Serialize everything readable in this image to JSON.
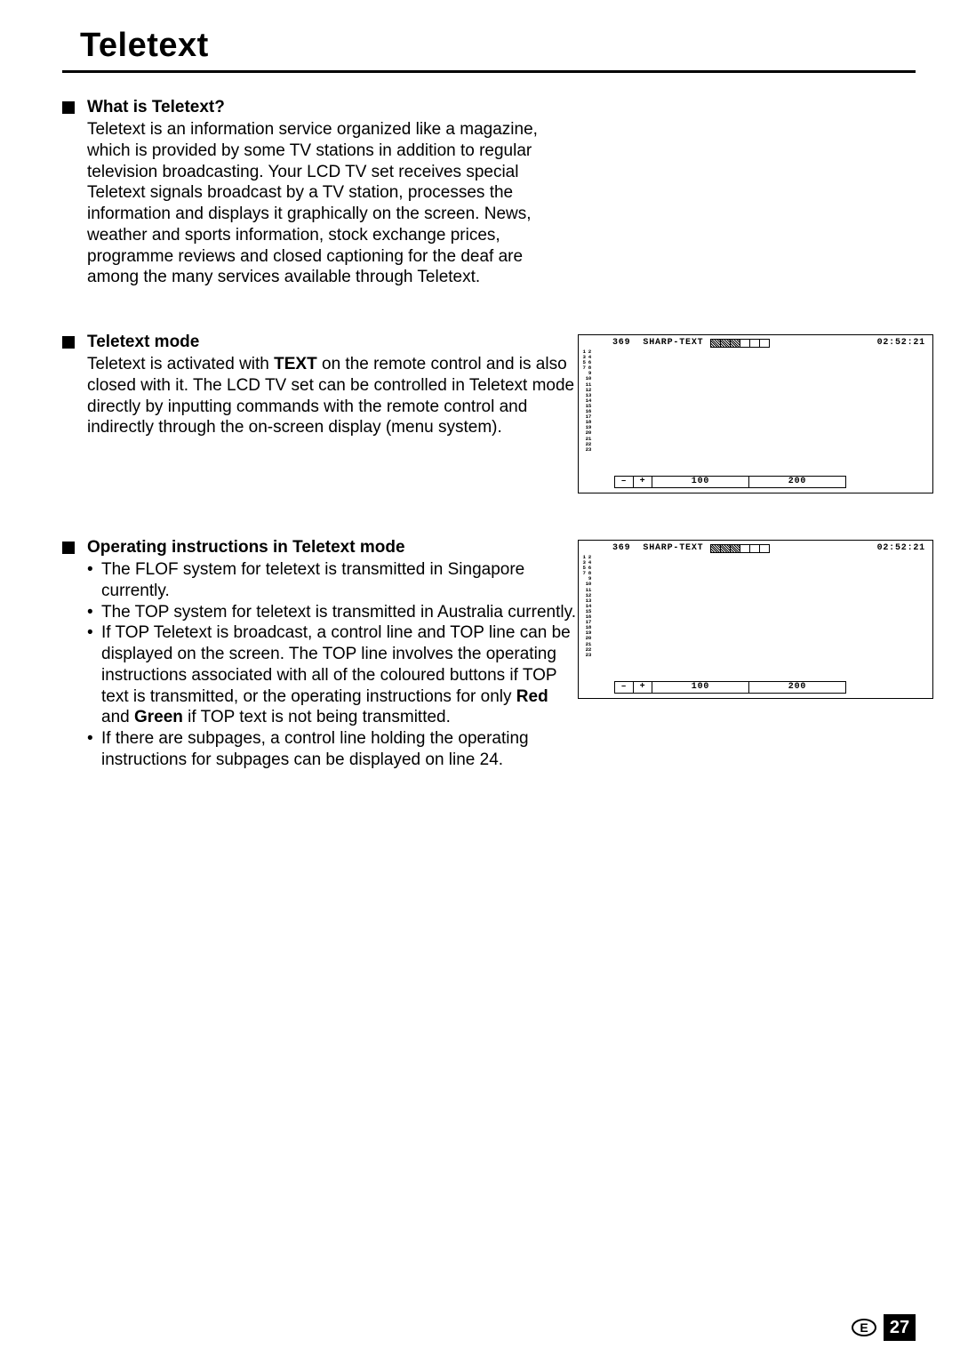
{
  "page": {
    "title": "Teletext",
    "footer_letter": "E",
    "footer_number": "27"
  },
  "sections": {
    "what": {
      "heading": "What is Teletext?",
      "body": "Teletext is an information service organized like a magazine, which is provided by some TV stations in addition to regular television broadcasting. Your LCD TV set receives special Teletext signals broadcast by a TV station, processes the information and displays it graphically on the screen. News, weather and sports information, stock exchange prices, programme reviews and closed captioning for the deaf are among the many services available through Teletext."
    },
    "mode": {
      "heading": "Teletext mode",
      "body_pre": "Teletext is activated with ",
      "body_bold": "TEXT",
      "body_post": " on the remote control and is also closed with it. The LCD TV set can be controlled in Teletext mode directly by inputting commands with the remote control and indirectly through the on-screen display (menu system)."
    },
    "ops": {
      "heading": "Operating instructions in Teletext mode",
      "items": [
        {
          "text": "The FLOF system for teletext is transmitted in Singapore currently."
        },
        {
          "text": "The TOP system for teletext is transmitted in Australia currently."
        },
        {
          "pre": "If TOP Teletext is broadcast, a control line and TOP line can be displayed on the screen. The TOP line involves the operating instructions associated with all of the coloured buttons if TOP text is transmitted, or the operating instructions for only ",
          "bold1": "Red",
          "mid": " and ",
          "bold2": "Green",
          "post": " if TOP text is not being transmitted."
        },
        {
          "text": "If there are subpages, a control line holding the operating instructions for subpages can be displayed on line 24."
        }
      ]
    }
  },
  "teletext_diagram": {
    "page_number": "369",
    "label": "SHARP-TEXT",
    "time": "02:52:21",
    "line_count": 23,
    "foot_minus": "–",
    "foot_plus": "+",
    "foot_100": "100",
    "foot_200": "200",
    "bars_filled": [
      true,
      true,
      true,
      false,
      false,
      false
    ]
  }
}
